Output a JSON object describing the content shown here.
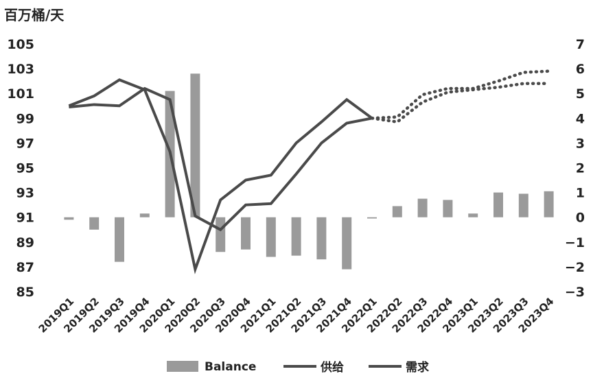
{
  "chart_data": {
    "type": "bar+line",
    "unit_label": "百万桶/天",
    "categories": [
      "2019Q1",
      "2019Q2",
      "2019Q3",
      "2019Q4",
      "2020Q1",
      "2020Q2",
      "2020Q3",
      "2020Q4",
      "2021Q1",
      "2021Q2",
      "2021Q3",
      "2021Q4",
      "2022Q1",
      "2022Q2",
      "2022Q3",
      "2022Q4",
      "2023Q1",
      "2023Q2",
      "2023Q3",
      "2023Q4"
    ],
    "left_axis": {
      "min": 85,
      "max": 105,
      "ticks": [
        105,
        103,
        101,
        99,
        97,
        95,
        93,
        91,
        89,
        87,
        85
      ]
    },
    "right_axis": {
      "min": -3,
      "max": 7,
      "ticks": [
        7,
        6,
        5,
        4,
        3,
        2,
        1,
        0,
        -1,
        -2,
        -3
      ]
    },
    "bars": {
      "name": "Balance",
      "axis": "right",
      "color": "#9a9a9a",
      "values": [
        -0.1,
        -0.5,
        -1.8,
        0.15,
        5.1,
        5.8,
        -1.4,
        -1.3,
        -1.6,
        -1.55,
        -1.7,
        -2.1,
        -0.05,
        0.45,
        0.75,
        0.7,
        0.15,
        1.0,
        0.95,
        1.05
      ]
    },
    "lines": [
      {
        "name": "供给",
        "axis": "left",
        "color": "#4a4a4a",
        "values": [
          99.9,
          100.1,
          100.0,
          101.4,
          100.5,
          91.1,
          90.0,
          92.0,
          92.1,
          94.5,
          97.0,
          98.6,
          99.0,
          98.7,
          100.3,
          101.1,
          101.3,
          101.5,
          101.8,
          101.8
        ]
      },
      {
        "name": "需求",
        "axis": "left",
        "color": "#4a4a4a",
        "values": [
          100.0,
          100.8,
          102.1,
          101.3,
          96.3,
          86.8,
          92.4,
          94.0,
          94.4,
          97.0,
          98.7,
          100.5,
          99.0,
          99.1,
          100.9,
          101.4,
          101.4,
          102.0,
          102.7,
          102.8
        ]
      }
    ],
    "projection_start_index": 12,
    "grid": false,
    "legend_position": "bottom",
    "legend": [
      "Balance",
      "供给",
      "需求"
    ]
  }
}
